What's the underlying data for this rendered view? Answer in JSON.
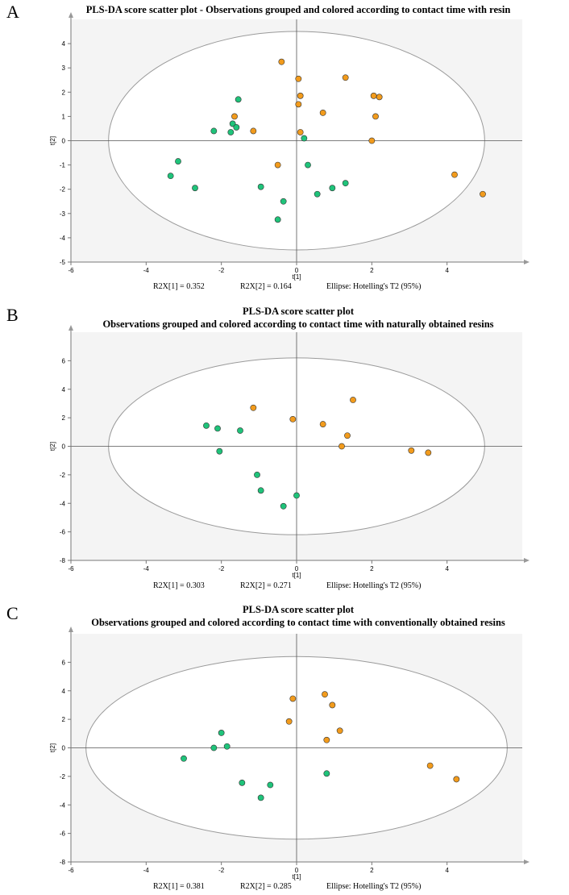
{
  "panels": [
    {
      "letter": "A",
      "title_lines": [
        "PLS-DA score scatter plot - Observations grouped and colored according to contact time with resin"
      ],
      "chart_data": {
        "type": "scatter",
        "xlabel": "t[1]",
        "ylabel": "t[2]",
        "xlim": [
          -6,
          6
        ],
        "ylim": [
          -5,
          5
        ],
        "xticks": [
          -6,
          -4,
          -2,
          0,
          2,
          4
        ],
        "yticks": [
          -5,
          -4,
          -3,
          -2,
          -1,
          0,
          1,
          2,
          3,
          4
        ],
        "ellipse": {
          "rx": 5.0,
          "ry": 4.5
        },
        "grid": false,
        "series": [
          {
            "color": "#1fc37a",
            "points": [
              [
                -3.35,
                -1.45
              ],
              [
                -3.15,
                -0.85
              ],
              [
                -2.7,
                -1.95
              ],
              [
                -2.2,
                0.4
              ],
              [
                -1.75,
                0.35
              ],
              [
                -1.7,
                0.7
              ],
              [
                -1.6,
                0.55
              ],
              [
                -1.55,
                1.7
              ],
              [
                -0.95,
                -1.9
              ],
              [
                -0.5,
                -3.25
              ],
              [
                -0.35,
                -2.5
              ],
              [
                0.2,
                0.1
              ],
              [
                0.3,
                -1.0
              ],
              [
                0.55,
                -2.2
              ],
              [
                0.95,
                -1.95
              ],
              [
                1.3,
                -1.75
              ]
            ]
          },
          {
            "color": "#f29b1c",
            "points": [
              [
                -1.65,
                1.0
              ],
              [
                -1.15,
                0.4
              ],
              [
                -0.5,
                -1.0
              ],
              [
                -0.4,
                3.25
              ],
              [
                0.05,
                2.55
              ],
              [
                0.05,
                1.5
              ],
              [
                0.1,
                1.85
              ],
              [
                0.1,
                0.35
              ],
              [
                0.7,
                1.15
              ],
              [
                1.3,
                2.6
              ],
              [
                2.0,
                0.0
              ],
              [
                2.05,
                1.85
              ],
              [
                2.1,
                1.0
              ],
              [
                2.2,
                1.8
              ],
              [
                4.2,
                -1.4
              ],
              [
                4.95,
                -2.2
              ]
            ]
          }
        ]
      },
      "footer": {
        "r2x1": "R2X[1] = 0.352",
        "r2x2": "R2X[2] = 0.164",
        "ellipse_label": "Ellipse: Hotelling's T2 (95%)"
      }
    },
    {
      "letter": "B",
      "title_lines": [
        "PLS-DA score scatter plot",
        "Observations grouped and colored according to contact time with naturally obtained resins"
      ],
      "chart_data": {
        "type": "scatter",
        "xlabel": "t[1]",
        "ylabel": "t[2]",
        "xlim": [
          -6,
          6
        ],
        "ylim": [
          -8,
          8
        ],
        "xticks": [
          -6,
          -4,
          -2,
          0,
          2,
          4
        ],
        "yticks": [
          -8,
          -6,
          -4,
          -2,
          0,
          2,
          4,
          6
        ],
        "ellipse": {
          "rx": 5.0,
          "ry": 6.2
        },
        "grid": false,
        "series": [
          {
            "color": "#1fc37a",
            "points": [
              [
                -2.4,
                1.45
              ],
              [
                -2.1,
                1.25
              ],
              [
                -2.05,
                -0.35
              ],
              [
                -1.5,
                1.1
              ],
              [
                -1.05,
                -2.0
              ],
              [
                -0.95,
                -3.1
              ],
              [
                -0.35,
                -4.2
              ],
              [
                0.0,
                -3.45
              ]
            ]
          },
          {
            "color": "#f29b1c",
            "points": [
              [
                -1.15,
                2.7
              ],
              [
                -0.1,
                1.9
              ],
              [
                0.7,
                1.55
              ],
              [
                1.2,
                0.0
              ],
              [
                1.35,
                0.75
              ],
              [
                1.5,
                3.25
              ],
              [
                3.05,
                -0.3
              ],
              [
                3.5,
                -0.45
              ]
            ]
          }
        ]
      },
      "footer": {
        "r2x1": "R2X[1] = 0.303",
        "r2x2": "R2X[2] = 0.271",
        "ellipse_label": "Ellipse: Hotelling's T2 (95%)"
      }
    },
    {
      "letter": "C",
      "title_lines": [
        "PLS-DA score scatter plot",
        "Observations grouped and colored according to contact time with conventionally obtained resins"
      ],
      "chart_data": {
        "type": "scatter",
        "xlabel": "t[1]",
        "ylabel": "t[2]",
        "xlim": [
          -6,
          6
        ],
        "ylim": [
          -8,
          8
        ],
        "xticks": [
          -6,
          -4,
          -2,
          0,
          2,
          4
        ],
        "yticks": [
          -8,
          -6,
          -4,
          -2,
          0,
          2,
          4,
          6
        ],
        "ellipse": {
          "rx": 5.6,
          "ry": 6.4
        },
        "grid": false,
        "series": [
          {
            "color": "#1fc37a",
            "points": [
              [
                -3.0,
                -0.75
              ],
              [
                -2.2,
                0.0
              ],
              [
                -2.0,
                1.05
              ],
              [
                -1.85,
                0.1
              ],
              [
                -1.45,
                -2.45
              ],
              [
                -0.95,
                -3.5
              ],
              [
                -0.7,
                -2.6
              ],
              [
                0.8,
                -1.8
              ]
            ]
          },
          {
            "color": "#f29b1c",
            "points": [
              [
                -0.2,
                1.85
              ],
              [
                -0.1,
                3.45
              ],
              [
                0.75,
                3.75
              ],
              [
                0.8,
                0.55
              ],
              [
                0.95,
                3.0
              ],
              [
                1.15,
                1.2
              ],
              [
                3.55,
                -1.25
              ],
              [
                4.25,
                -2.2
              ]
            ]
          }
        ]
      },
      "footer": {
        "r2x1": "R2X[1] = 0.381",
        "r2x2": "R2X[2] = 0.285",
        "ellipse_label": "Ellipse: Hotelling's T2 (95%)"
      }
    }
  ]
}
